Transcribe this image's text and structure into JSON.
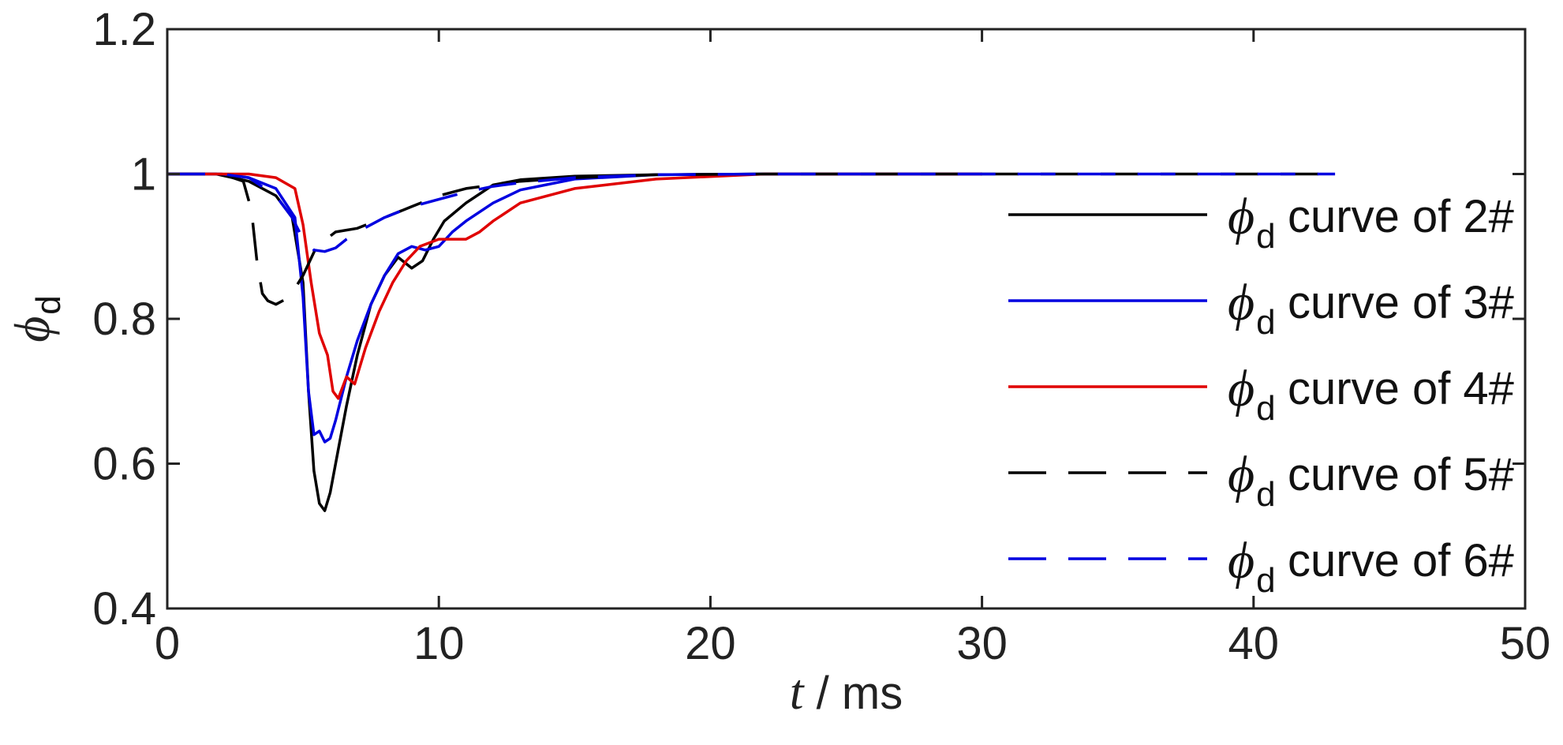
{
  "chart_data": {
    "type": "line",
    "title": "",
    "xlabel": {
      "symbol": "t",
      "unit": " / ms"
    },
    "ylabel": {
      "symbol": "ϕ",
      "subscript": "d"
    },
    "xlim": [
      0,
      50
    ],
    "ylim": [
      0.4,
      1.2
    ],
    "xticks": [
      "0",
      "10",
      "20",
      "30",
      "40",
      "50"
    ],
    "yticks": [
      "0.4",
      "0.6",
      "0.8",
      "1",
      "1.2"
    ],
    "grid": false,
    "legend_position": "right",
    "series": [
      {
        "name": "curve of 2#",
        "symbol": "ϕ",
        "subscript": "d",
        "color": "#000000",
        "dash": "solid",
        "x": [
          0,
          1.8,
          3,
          4,
          4.6,
          5,
          5.2,
          5.4,
          5.6,
          5.8,
          6,
          6.3,
          6.6,
          7,
          7.5,
          8,
          8.5,
          9,
          9.4,
          9.8,
          10.2,
          11,
          12,
          13,
          15,
          18,
          22,
          30
        ],
        "y": [
          1,
          1,
          0.99,
          0.97,
          0.94,
          0.85,
          0.7,
          0.59,
          0.545,
          0.535,
          0.56,
          0.62,
          0.68,
          0.75,
          0.82,
          0.86,
          0.885,
          0.87,
          0.88,
          0.91,
          0.935,
          0.96,
          0.985,
          0.992,
          0.997,
          0.999,
          1,
          1
        ]
      },
      {
        "name": "curve of 3#",
        "symbol": "ϕ",
        "subscript": "d",
        "color": "#0000e0",
        "dash": "solid",
        "x": [
          0,
          2,
          3,
          4,
          4.7,
          5,
          5.2,
          5.4,
          5.6,
          5.8,
          6,
          6.2,
          6.6,
          7,
          7.5,
          8,
          8.5,
          9,
          9.5,
          10,
          10.5,
          11,
          12,
          13,
          15,
          18,
          22,
          30
        ],
        "y": [
          1,
          1,
          0.995,
          0.98,
          0.94,
          0.83,
          0.7,
          0.64,
          0.645,
          0.63,
          0.635,
          0.66,
          0.72,
          0.77,
          0.82,
          0.86,
          0.89,
          0.9,
          0.895,
          0.9,
          0.92,
          0.935,
          0.96,
          0.978,
          0.993,
          0.999,
          1,
          1
        ]
      },
      {
        "name": "curve of 4#",
        "symbol": "ϕ",
        "subscript": "d",
        "color": "#e00000",
        "dash": "solid",
        "x": [
          0,
          2,
          3,
          4,
          4.7,
          5,
          5.3,
          5.6,
          5.9,
          6.1,
          6.3,
          6.6,
          6.9,
          7.3,
          7.8,
          8.3,
          8.8,
          9.3,
          10,
          11,
          11.5,
          12,
          13,
          15,
          18,
          22,
          30
        ],
        "y": [
          1,
          1,
          1,
          0.995,
          0.98,
          0.93,
          0.85,
          0.78,
          0.75,
          0.7,
          0.69,
          0.72,
          0.71,
          0.76,
          0.81,
          0.85,
          0.88,
          0.9,
          0.91,
          0.91,
          0.92,
          0.935,
          0.96,
          0.98,
          0.993,
          1,
          1
        ]
      },
      {
        "name": "curve of 5#",
        "symbol": "ϕ",
        "subscript": "d",
        "color": "#000000",
        "dash": "dashed",
        "x": [
          0,
          2,
          2.8,
          3.1,
          3.3,
          3.5,
          3.7,
          4,
          4.5,
          5,
          5.5,
          6.2,
          7,
          8,
          9,
          10,
          11,
          12,
          13,
          15,
          18,
          22,
          30,
          43
        ],
        "y": [
          1,
          1,
          0.99,
          0.95,
          0.88,
          0.835,
          0.825,
          0.82,
          0.83,
          0.86,
          0.9,
          0.92,
          0.925,
          0.94,
          0.955,
          0.97,
          0.98,
          0.985,
          0.99,
          0.995,
          0.999,
          1,
          1,
          1
        ]
      },
      {
        "name": "curve of 6#",
        "symbol": "ϕ",
        "subscript": "d",
        "color": "#0000e0",
        "dash": "dashed",
        "x": [
          0,
          2,
          3,
          4,
          4.6,
          5,
          5.4,
          5.8,
          6.2,
          6.6,
          7,
          8,
          9,
          10,
          11,
          12,
          13,
          15,
          18,
          22,
          30,
          43
        ],
        "y": [
          1,
          1,
          0.995,
          0.97,
          0.94,
          0.91,
          0.895,
          0.893,
          0.898,
          0.91,
          0.92,
          0.94,
          0.955,
          0.965,
          0.975,
          0.983,
          0.988,
          0.995,
          0.999,
          1,
          1,
          1
        ]
      }
    ]
  }
}
